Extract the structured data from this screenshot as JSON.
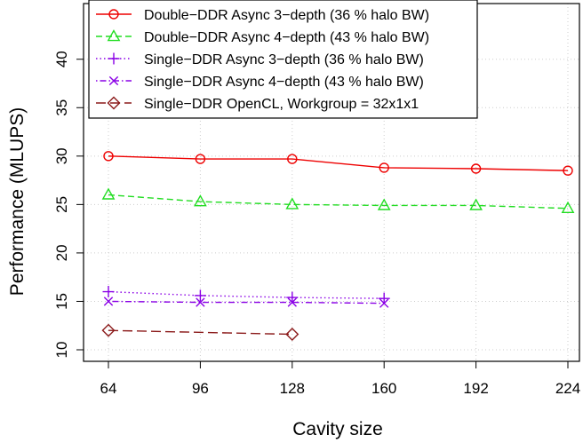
{
  "chart_data": {
    "type": "line",
    "xlabel": "Cavity size",
    "ylabel": "Performance (MLUPS)",
    "xlim": [
      64,
      224
    ],
    "ylim": [
      9,
      43
    ],
    "x_ticks": [
      64,
      96,
      128,
      160,
      192,
      224
    ],
    "x_tick_labels": [
      "64",
      "96",
      "128",
      "160",
      "192",
      "224"
    ],
    "y_ticks": [
      10,
      15,
      20,
      25,
      30,
      35,
      40
    ],
    "y_tick_labels": [
      "10",
      "15",
      "20",
      "25",
      "30",
      "35",
      "40"
    ],
    "grid": true,
    "legend_position": "top-left",
    "series": [
      {
        "name": "Double−DDR Async 3−depth (36 % halo BW)",
        "color": "#ee0000",
        "marker": "circle",
        "dash": "solid",
        "x": [
          64,
          96,
          128,
          160,
          192,
          224
        ],
        "values": [
          30.0,
          29.7,
          29.7,
          28.8,
          28.7,
          28.5
        ]
      },
      {
        "name": "Double−DDR Async 4−depth (43 % halo BW)",
        "color": "#22dd22",
        "marker": "triangle",
        "dash": "dashed",
        "x": [
          64,
          96,
          128,
          160,
          192,
          224
        ],
        "values": [
          26.0,
          25.3,
          25.0,
          24.9,
          24.9,
          24.6
        ]
      },
      {
        "name": "Single−DDR Async 3−depth (36 % halo BW)",
        "color": "#8a00e6",
        "marker": "plus",
        "dash": "dotted",
        "x": [
          64,
          96,
          128,
          160
        ],
        "values": [
          16.0,
          15.6,
          15.4,
          15.3
        ]
      },
      {
        "name": "Single−DDR Async 4−depth (43 % halo BW)",
        "color": "#8a00e6",
        "marker": "cross",
        "dash": "dotdash",
        "x": [
          64,
          96,
          128,
          160
        ],
        "values": [
          15.0,
          14.9,
          14.9,
          14.8
        ]
      },
      {
        "name": "Single−DDR OpenCL, Workgroup = 32x1x1",
        "color": "#8b1a1a",
        "marker": "diamond",
        "dash": "longdash",
        "x": [
          64,
          128
        ],
        "values": [
          12.0,
          11.6
        ]
      }
    ]
  }
}
